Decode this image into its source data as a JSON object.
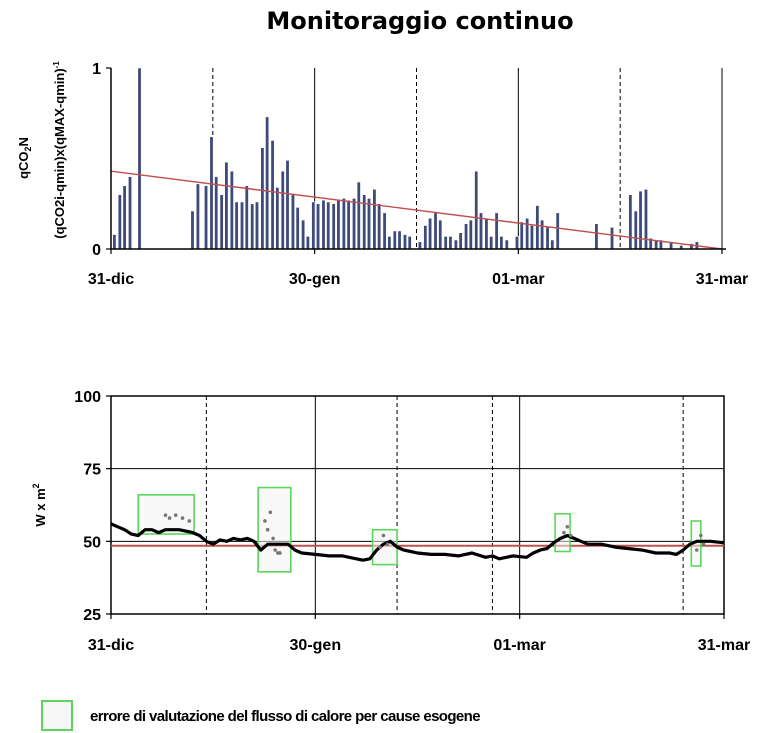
{
  "chart_data": [
    {
      "type": "bar",
      "title": "Monitoraggio continuo",
      "ylabel_line1": "qCO",
      "ylabel_line1_sub": "2",
      "ylabel_line1_tail": "N",
      "ylabel_line2": "(qCO2i-qmin)x(qMAX-qmin)",
      "ylabel_line2_sup": "-1",
      "yticks": [
        "0",
        "1"
      ],
      "ylim": [
        0,
        1
      ],
      "xticks": [
        {
          "day": 0,
          "label": "31-dic"
        },
        {
          "day": 30,
          "label": "30-gen"
        },
        {
          "day": 60,
          "label": "01-mar"
        },
        {
          "day": 90,
          "label": "31-mar"
        }
      ],
      "xlim": [
        0,
        90
      ],
      "solid_vlines_day": [
        0,
        30,
        60,
        90
      ],
      "dashed_vlines_day": [
        15,
        45,
        75
      ],
      "trend_line": {
        "start": [
          0,
          0.43
        ],
        "end": [
          90,
          0.0
        ],
        "color": "#c0504d"
      },
      "bar_color": "#3d4a7a",
      "bars": [
        {
          "day": 0.5,
          "value": 0.08
        },
        {
          "day": 1.3,
          "value": 0.3
        },
        {
          "day": 2.0,
          "value": 0.35
        },
        {
          "day": 2.8,
          "value": 0.4
        },
        {
          "day": 4.2,
          "value": 1.0
        },
        {
          "day": 12.0,
          "value": 0.21
        },
        {
          "day": 12.8,
          "value": 0.36
        },
        {
          "day": 14.0,
          "value": 0.35
        },
        {
          "day": 14.8,
          "value": 0.62
        },
        {
          "day": 15.5,
          "value": 0.4
        },
        {
          "day": 16.3,
          "value": 0.3
        },
        {
          "day": 17.0,
          "value": 0.48
        },
        {
          "day": 17.8,
          "value": 0.43
        },
        {
          "day": 18.5,
          "value": 0.26
        },
        {
          "day": 19.3,
          "value": 0.26
        },
        {
          "day": 20.0,
          "value": 0.35
        },
        {
          "day": 20.8,
          "value": 0.25
        },
        {
          "day": 21.5,
          "value": 0.26
        },
        {
          "day": 22.3,
          "value": 0.56
        },
        {
          "day": 23.0,
          "value": 0.73
        },
        {
          "day": 23.8,
          "value": 0.6
        },
        {
          "day": 24.5,
          "value": 0.34
        },
        {
          "day": 25.3,
          "value": 0.43
        },
        {
          "day": 26.0,
          "value": 0.49
        },
        {
          "day": 26.8,
          "value": 0.3
        },
        {
          "day": 27.5,
          "value": 0.23
        },
        {
          "day": 28.3,
          "value": 0.16
        },
        {
          "day": 29.0,
          "value": 0.07
        },
        {
          "day": 29.8,
          "value": 0.26
        },
        {
          "day": 30.5,
          "value": 0.25
        },
        {
          "day": 31.3,
          "value": 0.27
        },
        {
          "day": 32.0,
          "value": 0.26
        },
        {
          "day": 32.8,
          "value": 0.25
        },
        {
          "day": 33.5,
          "value": 0.27
        },
        {
          "day": 34.3,
          "value": 0.28
        },
        {
          "day": 35.0,
          "value": 0.27
        },
        {
          "day": 35.8,
          "value": 0.28
        },
        {
          "day": 36.5,
          "value": 0.37
        },
        {
          "day": 37.3,
          "value": 0.3
        },
        {
          "day": 38.0,
          "value": 0.28
        },
        {
          "day": 38.8,
          "value": 0.33
        },
        {
          "day": 39.5,
          "value": 0.25
        },
        {
          "day": 40.3,
          "value": 0.2
        },
        {
          "day": 41.0,
          "value": 0.07
        },
        {
          "day": 41.8,
          "value": 0.1
        },
        {
          "day": 42.5,
          "value": 0.1
        },
        {
          "day": 43.3,
          "value": 0.08
        },
        {
          "day": 44.0,
          "value": 0.07
        },
        {
          "day": 45.5,
          "value": 0.04
        },
        {
          "day": 46.3,
          "value": 0.13
        },
        {
          "day": 47.0,
          "value": 0.17
        },
        {
          "day": 47.8,
          "value": 0.2
        },
        {
          "day": 48.5,
          "value": 0.16
        },
        {
          "day": 49.3,
          "value": 0.07
        },
        {
          "day": 50.0,
          "value": 0.07
        },
        {
          "day": 50.8,
          "value": 0.05
        },
        {
          "day": 51.5,
          "value": 0.09
        },
        {
          "day": 52.3,
          "value": 0.14
        },
        {
          "day": 53.0,
          "value": 0.16
        },
        {
          "day": 53.8,
          "value": 0.43
        },
        {
          "day": 54.5,
          "value": 0.2
        },
        {
          "day": 55.3,
          "value": 0.17
        },
        {
          "day": 56.0,
          "value": 0.07
        },
        {
          "day": 56.8,
          "value": 0.2
        },
        {
          "day": 57.5,
          "value": 0.07
        },
        {
          "day": 58.3,
          "value": 0.05
        },
        {
          "day": 59.8,
          "value": 0.07
        },
        {
          "day": 60.5,
          "value": 0.15
        },
        {
          "day": 61.3,
          "value": 0.17
        },
        {
          "day": 62.0,
          "value": 0.13
        },
        {
          "day": 62.8,
          "value": 0.24
        },
        {
          "day": 63.5,
          "value": 0.16
        },
        {
          "day": 64.3,
          "value": 0.12
        },
        {
          "day": 65.0,
          "value": 0.05
        },
        {
          "day": 65.8,
          "value": 0.2
        },
        {
          "day": 71.5,
          "value": 0.14
        },
        {
          "day": 73.8,
          "value": 0.12
        },
        {
          "day": 76.5,
          "value": 0.3
        },
        {
          "day": 77.3,
          "value": 0.21
        },
        {
          "day": 78.0,
          "value": 0.32
        },
        {
          "day": 78.8,
          "value": 0.33
        },
        {
          "day": 79.5,
          "value": 0.06
        },
        {
          "day": 80.3,
          "value": 0.05
        },
        {
          "day": 81.0,
          "value": 0.05
        },
        {
          "day": 82.5,
          "value": 0.04
        },
        {
          "day": 84.0,
          "value": 0.02
        },
        {
          "day": 85.5,
          "value": 0.03
        },
        {
          "day": 86.3,
          "value": 0.04
        }
      ]
    },
    {
      "type": "line",
      "ylabel": "W x m",
      "ylabel_sup": "2",
      "yticks": [
        25,
        50,
        75,
        100
      ],
      "ylim": [
        25,
        100
      ],
      "xticks": [
        {
          "day": 0,
          "label": "31-dic"
        },
        {
          "day": 30,
          "label": "30-gen"
        },
        {
          "day": 60,
          "label": "01-mar"
        },
        {
          "day": 90,
          "label": "31-mar"
        }
      ],
      "xlim": [
        0,
        90
      ],
      "hgrid": [
        50,
        75
      ],
      "solid_vlines_day": [
        30,
        60
      ],
      "dashed_vlines_day": [
        14,
        42,
        56,
        84
      ],
      "reference_line": {
        "value": 48.5,
        "color": "#c0504d"
      },
      "series": [
        {
          "color": "#000000",
          "points": [
            [
              0,
              56
            ],
            [
              1,
              55
            ],
            [
              2,
              54
            ],
            [
              3,
              52.5
            ],
            [
              4,
              52
            ],
            [
              5,
              54
            ],
            [
              6,
              54
            ],
            [
              7,
              53
            ],
            [
              8,
              54
            ],
            [
              10,
              54
            ],
            [
              12,
              53
            ],
            [
              13,
              52
            ],
            [
              14,
              50
            ],
            [
              15,
              49
            ],
            [
              16,
              50.5
            ],
            [
              17,
              50
            ],
            [
              18,
              51
            ],
            [
              19,
              50.5
            ],
            [
              20,
              51
            ],
            [
              21,
              50
            ],
            [
              22,
              47
            ],
            [
              23,
              49
            ],
            [
              24,
              49
            ],
            [
              25,
              49
            ],
            [
              26,
              49
            ],
            [
              27,
              47
            ],
            [
              28,
              46
            ],
            [
              30,
              45.5
            ],
            [
              32,
              45
            ],
            [
              34,
              45
            ],
            [
              36,
              44
            ],
            [
              37,
              43.5
            ],
            [
              38,
              44
            ],
            [
              39,
              47
            ],
            [
              40,
              49
            ],
            [
              41,
              50
            ],
            [
              42,
              48
            ],
            [
              43,
              47
            ],
            [
              44,
              46.5
            ],
            [
              45,
              46
            ],
            [
              47,
              45.5
            ],
            [
              49,
              45.5
            ],
            [
              51,
              45
            ],
            [
              53,
              46
            ],
            [
              55,
              44.5
            ],
            [
              56,
              45
            ],
            [
              57,
              44
            ],
            [
              59,
              45
            ],
            [
              61,
              44.5
            ],
            [
              62,
              46
            ],
            [
              63,
              47
            ],
            [
              64,
              47.5
            ],
            [
              65,
              49.5
            ],
            [
              66,
              51
            ],
            [
              67,
              52
            ],
            [
              68,
              51
            ],
            [
              69,
              50
            ],
            [
              70,
              49
            ],
            [
              72,
              49
            ],
            [
              74,
              48
            ],
            [
              76,
              47.5
            ],
            [
              78,
              47
            ],
            [
              80,
              46
            ],
            [
              82,
              46
            ],
            [
              83,
              45.5
            ],
            [
              84,
              47
            ],
            [
              85,
              49
            ],
            [
              86,
              50
            ],
            [
              88,
              50
            ],
            [
              90,
              49.5
            ]
          ]
        }
      ],
      "outliers": [
        [
          8,
          59
        ],
        [
          8.6,
          58
        ],
        [
          9.5,
          59
        ],
        [
          10.5,
          58
        ],
        [
          11.5,
          57
        ],
        [
          22.6,
          57
        ],
        [
          23,
          54
        ],
        [
          23.4,
          60
        ],
        [
          23.8,
          51
        ],
        [
          24.1,
          47
        ],
        [
          24.5,
          46
        ],
        [
          24.8,
          46
        ],
        [
          39.5,
          48
        ],
        [
          40,
          52
        ],
        [
          40.6,
          49
        ],
        [
          66.5,
          53
        ],
        [
          67,
          55
        ],
        [
          67.5,
          52
        ],
        [
          86,
          47
        ],
        [
          86.6,
          52
        ],
        [
          87,
          49
        ]
      ],
      "error_boxes": [
        {
          "x0": 4,
          "x1": 12.2,
          "y0": 52.5,
          "y1": 66
        },
        {
          "x0": 21.6,
          "x1": 26.4,
          "y0": 39.5,
          "y1": 68.5
        },
        {
          "x0": 38.4,
          "x1": 42,
          "y0": 42,
          "y1": 54
        },
        {
          "x0": 65.2,
          "x1": 67.4,
          "y0": 46.5,
          "y1": 59.5
        },
        {
          "x0": 85.2,
          "x1": 86.6,
          "y0": 41.5,
          "y1": 57
        }
      ],
      "error_box_color": "#5bd65b"
    }
  ],
  "legend": {
    "label": "errore di valutazione del flusso di calore per cause esogene"
  }
}
